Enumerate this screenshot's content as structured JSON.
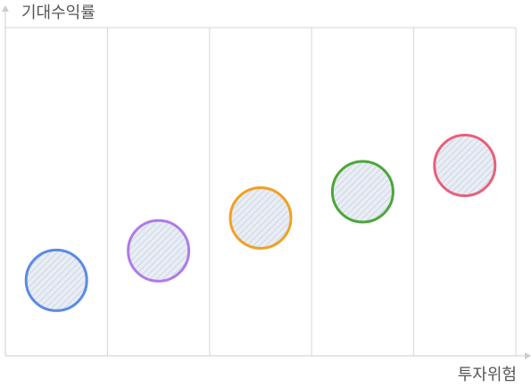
{
  "chart_data": {
    "type": "scatter",
    "ylabel": "기대수익률",
    "xlabel": "투자위험",
    "grid": {
      "vertical": true,
      "horizontal": false,
      "columns": 5
    },
    "legend": "none",
    "xlim": [
      0,
      5
    ],
    "ylim": [
      0,
      10
    ],
    "series": [
      {
        "x": 0.5,
        "y": 2.3,
        "color": "#5b8ae6"
      },
      {
        "x": 1.5,
        "y": 3.2,
        "color": "#b07ae8"
      },
      {
        "x": 2.5,
        "y": 4.2,
        "color": "#f0a024"
      },
      {
        "x": 3.5,
        "y": 5.0,
        "color": "#4ca63a"
      },
      {
        "x": 4.5,
        "y": 5.8,
        "color": "#e8607a"
      }
    ]
  },
  "colors": {
    "grid": "#d6d6d6",
    "axis": "#cccccc",
    "label": "#555555",
    "marker_fill": "#e9edf4",
    "marker_hatch": "#c7d1e2"
  }
}
